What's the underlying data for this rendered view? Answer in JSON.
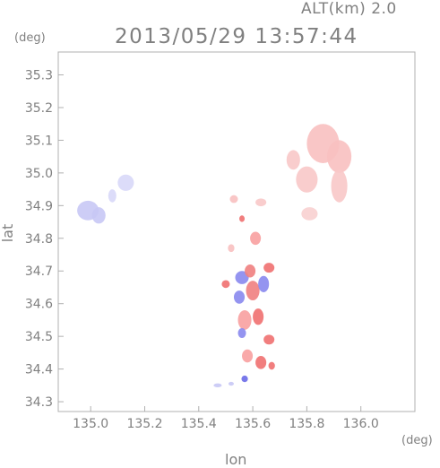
{
  "header": {
    "altitude_label": "ALT(km) 2.0",
    "timestamp": "2013/05/29 13:57:44"
  },
  "axes": {
    "x_label": "lon",
    "y_label": "lat",
    "x_unit": "(deg)",
    "y_unit": "(deg)"
  },
  "chart_data": {
    "type": "scatter",
    "xlim": [
      134.88,
      136.2
    ],
    "ylim": [
      34.27,
      35.37
    ],
    "x_ticks": [
      135.0,
      135.2,
      135.4,
      135.6,
      135.8,
      136.0
    ],
    "x_tick_labels": [
      "135.0",
      "135.2",
      "135.4",
      "135.6",
      "135.8",
      "136.0"
    ],
    "y_ticks": [
      34.3,
      34.4,
      34.5,
      34.6,
      34.7,
      34.8,
      34.9,
      35.0,
      35.1,
      35.2,
      35.3
    ],
    "y_tick_labels": [
      "34.3",
      "34.4",
      "34.5",
      "34.6",
      "34.7",
      "34.8",
      "34.9",
      "35.0",
      "35.1",
      "35.2",
      "35.3"
    ],
    "colors": {
      "frame": "#b0b0b0",
      "text": "#808080",
      "approaching_strong": "#6a6ae8",
      "approaching_weak": "#c8c8f5",
      "receding_strong": "#f07070",
      "receding_weak": "#f8c0c0"
    },
    "clusters": [
      {
        "lon": 134.99,
        "lat": 34.885,
        "rx": 0.04,
        "ry": 0.03,
        "color": "#c8c8f5"
      },
      {
        "lon": 135.03,
        "lat": 34.87,
        "rx": 0.025,
        "ry": 0.025,
        "color": "#c8c8f5"
      },
      {
        "lon": 135.08,
        "lat": 34.93,
        "rx": 0.015,
        "ry": 0.02,
        "color": "#d8d8f8"
      },
      {
        "lon": 135.13,
        "lat": 34.97,
        "rx": 0.03,
        "ry": 0.025,
        "color": "#d8d8f8"
      },
      {
        "lon": 135.86,
        "lat": 35.09,
        "rx": 0.06,
        "ry": 0.06,
        "color": "#f8c0c0"
      },
      {
        "lon": 135.92,
        "lat": 35.05,
        "rx": 0.045,
        "ry": 0.05,
        "color": "#f8c0c0"
      },
      {
        "lon": 135.8,
        "lat": 34.98,
        "rx": 0.04,
        "ry": 0.04,
        "color": "#f8c8c8"
      },
      {
        "lon": 135.92,
        "lat": 34.96,
        "rx": 0.03,
        "ry": 0.05,
        "color": "#f8c8c8"
      },
      {
        "lon": 135.75,
        "lat": 35.04,
        "rx": 0.025,
        "ry": 0.03,
        "color": "#f8c8c8"
      },
      {
        "lon": 135.81,
        "lat": 34.875,
        "rx": 0.03,
        "ry": 0.02,
        "color": "#f8d0d0"
      },
      {
        "lon": 135.53,
        "lat": 34.92,
        "rx": 0.015,
        "ry": 0.012,
        "color": "#f8c0c0"
      },
      {
        "lon": 135.63,
        "lat": 34.91,
        "rx": 0.02,
        "ry": 0.012,
        "color": "#f8c8c8"
      },
      {
        "lon": 135.56,
        "lat": 34.86,
        "rx": 0.01,
        "ry": 0.01,
        "color": "#f07070"
      },
      {
        "lon": 135.61,
        "lat": 34.8,
        "rx": 0.02,
        "ry": 0.02,
        "color": "#f8a0a0"
      },
      {
        "lon": 135.52,
        "lat": 34.77,
        "rx": 0.012,
        "ry": 0.012,
        "color": "#f8c0c0"
      },
      {
        "lon": 135.56,
        "lat": 34.68,
        "rx": 0.025,
        "ry": 0.02,
        "color": "#8888ee"
      },
      {
        "lon": 135.59,
        "lat": 34.7,
        "rx": 0.02,
        "ry": 0.02,
        "color": "#f08080"
      },
      {
        "lon": 135.6,
        "lat": 34.64,
        "rx": 0.025,
        "ry": 0.03,
        "color": "#f08080"
      },
      {
        "lon": 135.55,
        "lat": 34.62,
        "rx": 0.02,
        "ry": 0.02,
        "color": "#8888ee"
      },
      {
        "lon": 135.64,
        "lat": 34.66,
        "rx": 0.02,
        "ry": 0.025,
        "color": "#8888ee"
      },
      {
        "lon": 135.66,
        "lat": 34.71,
        "rx": 0.02,
        "ry": 0.015,
        "color": "#f07070"
      },
      {
        "lon": 135.5,
        "lat": 34.66,
        "rx": 0.015,
        "ry": 0.012,
        "color": "#f07070"
      },
      {
        "lon": 135.57,
        "lat": 34.55,
        "rx": 0.025,
        "ry": 0.03,
        "color": "#f8a0a0"
      },
      {
        "lon": 135.62,
        "lat": 34.56,
        "rx": 0.02,
        "ry": 0.025,
        "color": "#f07070"
      },
      {
        "lon": 135.56,
        "lat": 34.51,
        "rx": 0.015,
        "ry": 0.015,
        "color": "#8888ee"
      },
      {
        "lon": 135.66,
        "lat": 34.49,
        "rx": 0.02,
        "ry": 0.015,
        "color": "#f07070"
      },
      {
        "lon": 135.58,
        "lat": 34.44,
        "rx": 0.02,
        "ry": 0.02,
        "color": "#f8a0a0"
      },
      {
        "lon": 135.63,
        "lat": 34.42,
        "rx": 0.02,
        "ry": 0.02,
        "color": "#f07070"
      },
      {
        "lon": 135.67,
        "lat": 34.41,
        "rx": 0.012,
        "ry": 0.012,
        "color": "#f07070"
      },
      {
        "lon": 135.57,
        "lat": 34.37,
        "rx": 0.012,
        "ry": 0.01,
        "color": "#6a6ae8"
      },
      {
        "lon": 135.47,
        "lat": 34.35,
        "rx": 0.015,
        "ry": 0.006,
        "color": "#c8c8f5"
      },
      {
        "lon": 135.52,
        "lat": 34.355,
        "rx": 0.01,
        "ry": 0.006,
        "color": "#c8c8f5"
      }
    ]
  }
}
